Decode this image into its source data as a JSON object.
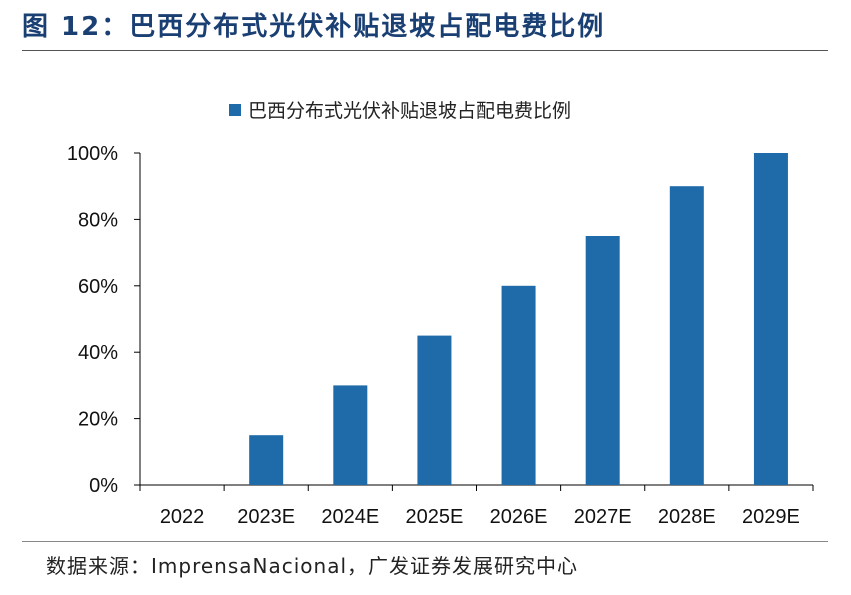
{
  "figure": {
    "title": "图 12：巴西分布式光伏补贴退坡占配电费比例",
    "source_label": "数据来源：",
    "source_text": "ImprensaNacional，广发证券发展研究中心"
  },
  "colors": {
    "bar": "#1f6aa8",
    "title": "#1a3f73",
    "axis": "#000000"
  },
  "chart_data": {
    "type": "bar",
    "categories": [
      "2022",
      "2023E",
      "2024E",
      "2025E",
      "2026E",
      "2027E",
      "2028E",
      "2029E"
    ],
    "series": [
      {
        "name": "巴西分布式光伏补贴退坡占配电费比例",
        "values": [
          0,
          15,
          30,
          45,
          60,
          75,
          90,
          100
        ]
      }
    ],
    "ylim": [
      0,
      100
    ],
    "yticks": [
      "0%",
      "20%",
      "40%",
      "60%",
      "80%",
      "100%"
    ],
    "ytick_values": [
      0,
      20,
      40,
      60,
      80,
      100
    ],
    "xlabel": "",
    "ylabel": "",
    "legend": "top-center",
    "grid": false
  }
}
